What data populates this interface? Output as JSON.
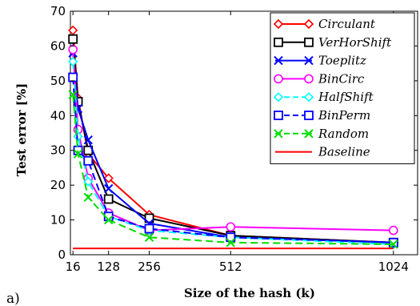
{
  "panel_label": "a)",
  "chart_data": {
    "type": "line",
    "xlabel": "Size of the hash (k)",
    "ylabel": "Test error [%]",
    "xlim": [
      8,
      1100
    ],
    "ylim": [
      0,
      70
    ],
    "xticks": [
      16,
      128,
      256,
      512,
      1024
    ],
    "yticks": [
      0,
      10,
      20,
      30,
      40,
      50,
      60,
      70
    ],
    "legend_position": "top-right",
    "series": [
      {
        "name": "Circulant",
        "color": "#ff0000",
        "marker": "diamond",
        "dash": "solid",
        "x": [
          16,
          32,
          64,
          128,
          256,
          512,
          1024
        ],
        "y": [
          64.5,
          45,
          29,
          22,
          11.5,
          5.5,
          3.5
        ]
      },
      {
        "name": "VerHorShift",
        "color": "#000000",
        "marker": "square",
        "dash": "solid",
        "x": [
          16,
          32,
          64,
          128,
          256,
          512,
          1024
        ],
        "y": [
          62,
          44,
          30,
          16,
          10.5,
          5.5,
          3.5
        ]
      },
      {
        "name": "Toeplitz",
        "color": "#0000ff",
        "marker": "x",
        "dash": "solid",
        "x": [
          16,
          32,
          64,
          128,
          256,
          512,
          1024
        ],
        "y": [
          58,
          42,
          33,
          19,
          9,
          5,
          3.5
        ]
      },
      {
        "name": "BinCirc",
        "color": "#ff00ff",
        "marker": "circle",
        "dash": "solid",
        "x": [
          16,
          32,
          64,
          128,
          256,
          512,
          1024
        ],
        "y": [
          59,
          36,
          22,
          12,
          7,
          8,
          7
        ]
      },
      {
        "name": "HalfShift",
        "color": "#00ffff",
        "marker": "diamond",
        "dash": "dashed",
        "x": [
          16,
          32,
          64,
          128,
          256,
          512,
          1024
        ],
        "y": [
          55.5,
          34,
          21,
          11,
          7,
          5,
          3
        ]
      },
      {
        "name": "BinPerm",
        "color": "#0000ff",
        "marker": "square",
        "dash": "dashed",
        "x": [
          16,
          32,
          64,
          128,
          256,
          512,
          1024
        ],
        "y": [
          51,
          30,
          27,
          11,
          7.5,
          5,
          3.5
        ]
      },
      {
        "name": "Random",
        "color": "#00dd00",
        "marker": "x",
        "dash": "dashed",
        "x": [
          16,
          32,
          64,
          128,
          256,
          512,
          1024
        ],
        "y": [
          46,
          29,
          16.5,
          10,
          5,
          3.5,
          3
        ]
      },
      {
        "name": "Baseline",
        "color": "#ff0000",
        "marker": "none",
        "dash": "solid",
        "x": [
          16,
          1024
        ],
        "y": [
          1.8,
          1.8
        ]
      }
    ]
  }
}
